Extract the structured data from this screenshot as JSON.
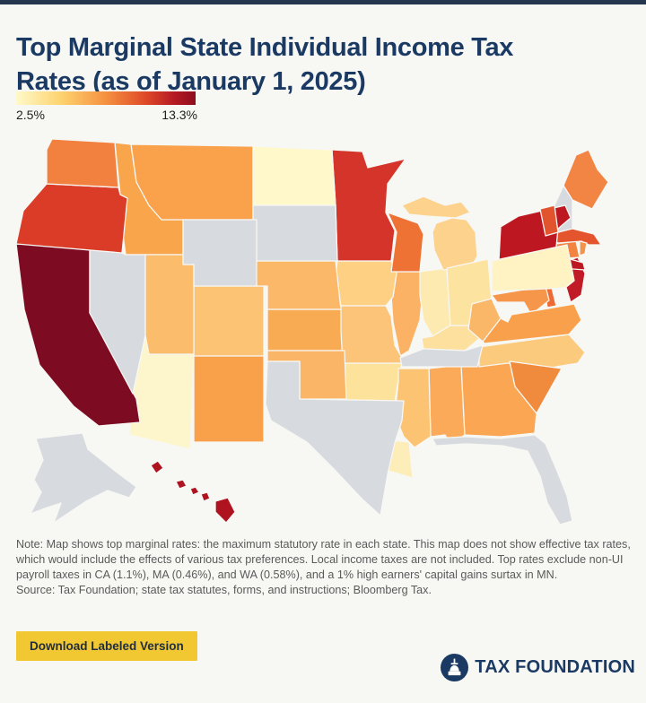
{
  "page": {
    "background": "#f7f7f4",
    "top_border_color": "#24374f"
  },
  "header": {
    "title_line1": "Top Marginal State Individual Income Tax",
    "title_line2": "Rates (as of January 1, 2025)",
    "title_color": "#1b3a63"
  },
  "legend": {
    "min_label": "2.5%",
    "max_label": "13.3%",
    "gradient_stops": [
      "#fff9c9 0%",
      "#fdd36f 25%",
      "#f59140 50%",
      "#df4a28 72%",
      "#b51a23 88%",
      "#8e0e1e 100%"
    ]
  },
  "map": {
    "no_tax_color": "#d7dade",
    "states": [
      {
        "id": "AL",
        "name": "Alabama",
        "fill": "#faaa58"
      },
      {
        "id": "AK",
        "name": "Alaska",
        "fill": "#d7dade"
      },
      {
        "id": "AZ",
        "name": "Arizona",
        "fill": "#fdf6cd"
      },
      {
        "id": "AR",
        "name": "Arkansas",
        "fill": "#fde29c"
      },
      {
        "id": "CA",
        "name": "California",
        "fill": "#7d0c23"
      },
      {
        "id": "CO",
        "name": "Colorado",
        "fill": "#fcc374"
      },
      {
        "id": "CT",
        "name": "Connecticut",
        "fill": "#f28340"
      },
      {
        "id": "DE",
        "name": "Delaware",
        "fill": "#ee6a35"
      },
      {
        "id": "FL",
        "name": "Florida",
        "fill": "#d7dade"
      },
      {
        "id": "GA",
        "name": "Georgia",
        "fill": "#faa653"
      },
      {
        "id": "HI",
        "name": "Hawaii",
        "fill": "#b01320"
      },
      {
        "id": "ID",
        "name": "Idaho",
        "fill": "#f9a54c"
      },
      {
        "id": "IL",
        "name": "Illinois",
        "fill": "#fbb264"
      },
      {
        "id": "IN",
        "name": "Indiana",
        "fill": "#fdeab0"
      },
      {
        "id": "IA",
        "name": "Iowa",
        "fill": "#fdd083"
      },
      {
        "id": "KS",
        "name": "Kansas",
        "fill": "#f9ab54"
      },
      {
        "id": "KY",
        "name": "Kentucky",
        "fill": "#fddf9e"
      },
      {
        "id": "LA",
        "name": "Louisiana",
        "fill": "#fdedb8"
      },
      {
        "id": "ME",
        "name": "Maine",
        "fill": "#f28544"
      },
      {
        "id": "MD",
        "name": "Maryland",
        "fill": "#f5964a"
      },
      {
        "id": "MA",
        "name": "Massachusetts",
        "fill": "#e4552d"
      },
      {
        "id": "MI",
        "name": "Michigan",
        "fill": "#fdd28c"
      },
      {
        "id": "MN",
        "name": "Minnesota",
        "fill": "#d5342b"
      },
      {
        "id": "MS",
        "name": "Mississippi",
        "fill": "#fcc372"
      },
      {
        "id": "MO",
        "name": "Missouri",
        "fill": "#fcc478"
      },
      {
        "id": "MT",
        "name": "Montana",
        "fill": "#f9a14b"
      },
      {
        "id": "NE",
        "name": "Nebraska",
        "fill": "#fbb869"
      },
      {
        "id": "NV",
        "name": "Nevada",
        "fill": "#d7dade"
      },
      {
        "id": "NH",
        "name": "New Hampshire",
        "fill": "#d7dade"
      },
      {
        "id": "NJ",
        "name": "New Jersey",
        "fill": "#c01b26"
      },
      {
        "id": "NM",
        "name": "New Mexico",
        "fill": "#f9a04a"
      },
      {
        "id": "NY",
        "name": "New York",
        "fill": "#bd1721"
      },
      {
        "id": "NC",
        "name": "North Carolina",
        "fill": "#fcca7c"
      },
      {
        "id": "ND",
        "name": "North Dakota",
        "fill": "#fff8cb"
      },
      {
        "id": "OH",
        "name": "Ohio",
        "fill": "#fde3a0"
      },
      {
        "id": "OK",
        "name": "Oklahoma",
        "fill": "#fbb566"
      },
      {
        "id": "OR",
        "name": "Oregon",
        "fill": "#db3c27"
      },
      {
        "id": "PA",
        "name": "Pennsylvania",
        "fill": "#fff3c4"
      },
      {
        "id": "RI",
        "name": "Rhode Island",
        "fill": "#f4924a"
      },
      {
        "id": "SC",
        "name": "South Carolina",
        "fill": "#f08a3c"
      },
      {
        "id": "SD",
        "name": "South Dakota",
        "fill": "#d7dade"
      },
      {
        "id": "TN",
        "name": "Tennessee",
        "fill": "#d7dade"
      },
      {
        "id": "TX",
        "name": "Texas",
        "fill": "#d7dade"
      },
      {
        "id": "UT",
        "name": "Utah",
        "fill": "#fbbc6b"
      },
      {
        "id": "VT",
        "name": "Vermont",
        "fill": "#e2542e"
      },
      {
        "id": "VA",
        "name": "Virginia",
        "fill": "#f9a04c"
      },
      {
        "id": "WA",
        "name": "Washington",
        "fill": "#f28140"
      },
      {
        "id": "WV",
        "name": "West Virginia",
        "fill": "#fbb768"
      },
      {
        "id": "WI",
        "name": "Wisconsin",
        "fill": "#ee7233"
      },
      {
        "id": "WY",
        "name": "Wyoming",
        "fill": "#d7dade"
      }
    ]
  },
  "note": {
    "text": "Note: Map shows top marginal rates: the maximum statutory rate in each state. This map does not show effective tax rates, which would include the effects of various tax preferences. Local income taxes are not included. Top rates exclude non-UI payroll taxes in CA (1.1%), MA (0.46%), and WA (0.58%), and a 1% high earners' capital gains surtax in MN.",
    "source": "Source: Tax Foundation; state tax statutes, forms, and instructions; Bloomberg Tax."
  },
  "footer": {
    "download_label": "Download Labeled Version",
    "button_bg": "#f2c832",
    "logo_text": "TAX FOUNDATION",
    "logo_color": "#1b3a63"
  }
}
